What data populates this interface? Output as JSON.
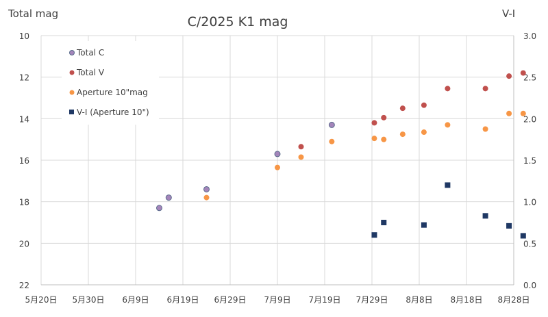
{
  "chart_data": {
    "type": "scatter",
    "title": "C/2025 K1  mag",
    "ylabel_left": "Total mag",
    "ylabel_right": "V-I",
    "x_tick_labels": [
      "5月20日",
      "5月30日",
      "6月9日",
      "6月19日",
      "6月29日",
      "7月9日",
      "7月19日",
      "7月29日",
      "8月8日",
      "8月18日",
      "8月28日"
    ],
    "x_start_label": "5月20日",
    "x_range_days": [
      0,
      100
    ],
    "y_left": {
      "range": [
        10,
        22
      ],
      "inverted": true,
      "ticks": [
        "10",
        "12",
        "14",
        "16",
        "18",
        "20",
        "22"
      ]
    },
    "y_right": {
      "range": [
        0.0,
        3.0
      ],
      "ticks": [
        "0.0",
        "0.5",
        "1.0",
        "1.5",
        "2.0",
        "2.5",
        "3.0"
      ]
    },
    "grid": "on",
    "legend_position": "top-left",
    "series": [
      {
        "name": "Total C",
        "axis": "left",
        "color": "#a485ba",
        "marker": "circle",
        "x": [
          25,
          27,
          35,
          50,
          61.5
        ],
        "y": [
          18.3,
          17.8,
          17.4,
          15.7,
          14.3
        ]
      },
      {
        "name": "Total V",
        "axis": "left",
        "color": "#c0504d",
        "marker": "circle",
        "x": [
          55,
          70.5,
          72.5,
          76.5,
          81,
          86,
          94,
          99,
          102
        ],
        "y": [
          15.35,
          14.2,
          13.95,
          13.5,
          13.35,
          12.55,
          12.55,
          11.95,
          11.8
        ]
      },
      {
        "name": "Aperture 10\"mag",
        "axis": "left",
        "color": "#f79646",
        "marker": "circle",
        "x": [
          35,
          50,
          55,
          61.5,
          70.5,
          72.5,
          76.5,
          81,
          86,
          94,
          99,
          102
        ],
        "y": [
          17.8,
          16.35,
          15.85,
          15.1,
          14.95,
          15.0,
          14.75,
          14.65,
          14.3,
          14.5,
          13.75,
          13.75
        ]
      },
      {
        "name": "V-I (Aperture 10\")",
        "axis": "right",
        "color": "#1f3864",
        "marker": "square",
        "x": [
          70.5,
          72.5,
          81,
          86,
          94,
          99,
          102
        ],
        "y": [
          0.6,
          0.75,
          0.72,
          1.2,
          0.83,
          0.71,
          0.59
        ]
      }
    ]
  }
}
